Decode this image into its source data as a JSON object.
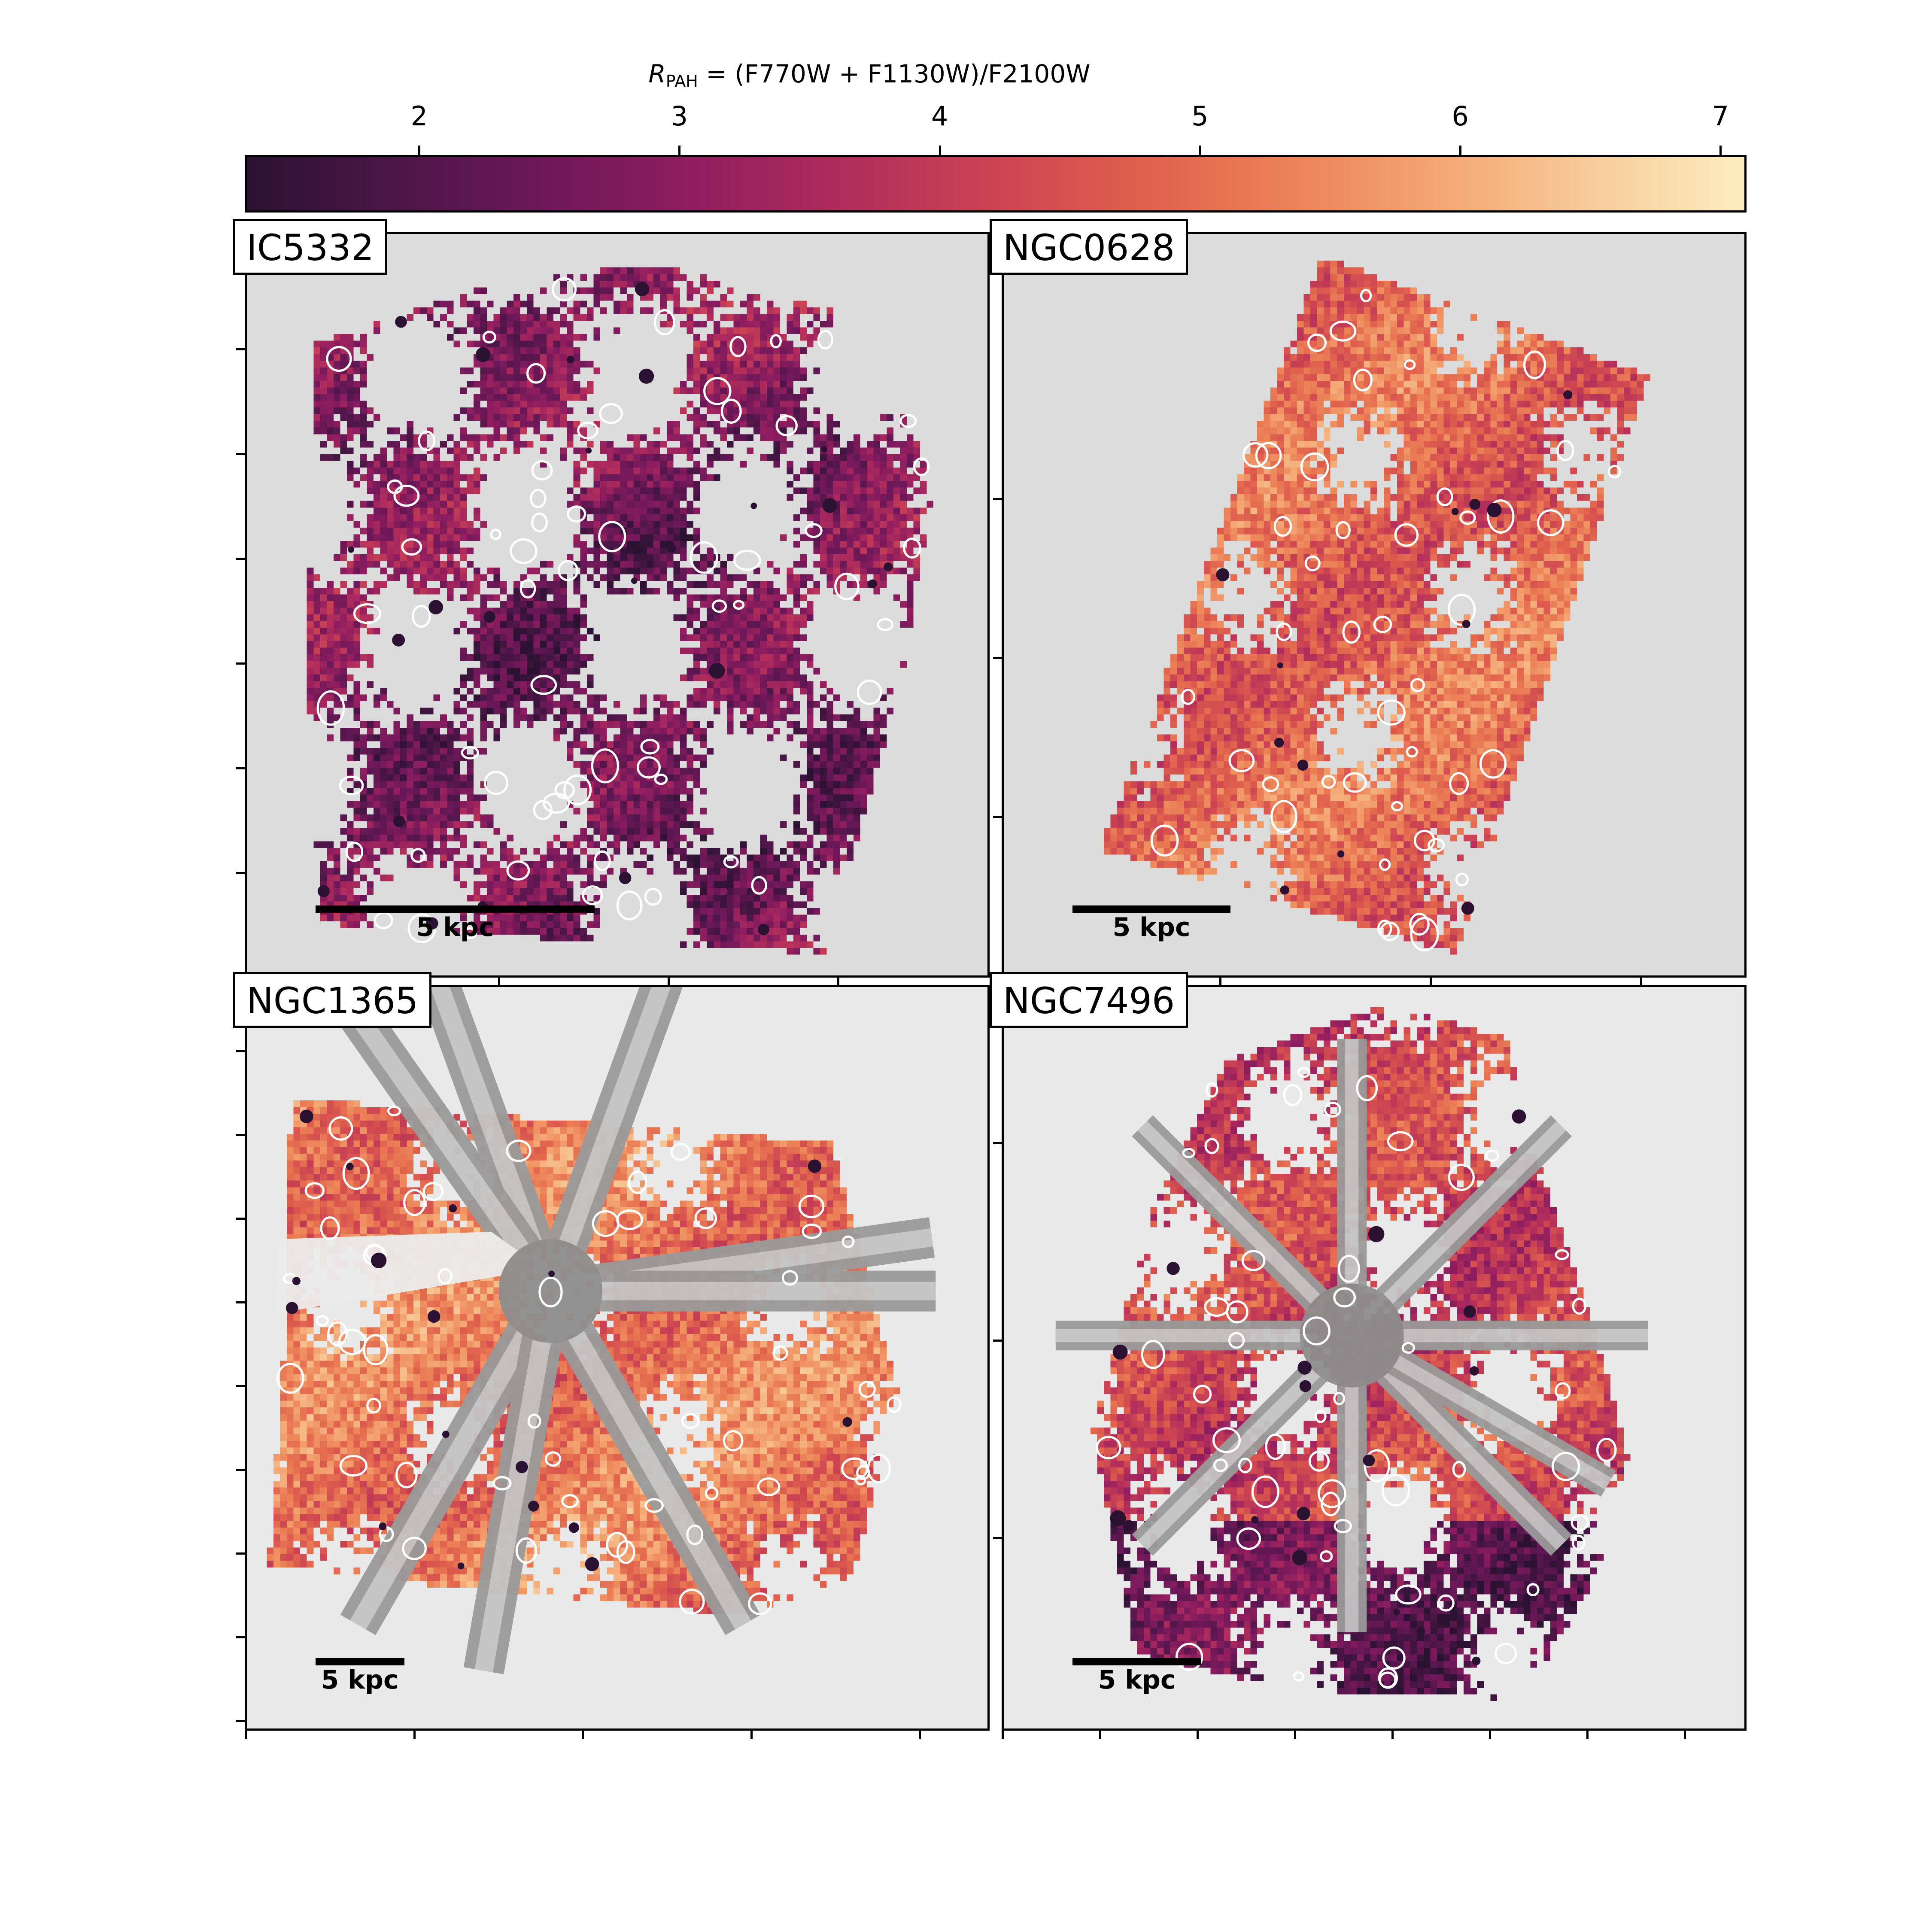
{
  "colorbar": {
    "title_main": "R",
    "title_sub": "PAH",
    "title_rest": " = (F770W + F1130W)/F2100W",
    "colormap": [
      "#2b1232",
      "#4c1647",
      "#6e1859",
      "#901e5f",
      "#b02d5c",
      "#cc4452",
      "#e0614d",
      "#ec8358",
      "#f4a875",
      "#f7cd9b",
      "#fcedc0"
    ],
    "range": [
      1.33,
      7.1
    ],
    "ticks": [
      "2",
      "3",
      "4",
      "5",
      "6",
      "7"
    ]
  },
  "panels": [
    {
      "name": "IC5332",
      "scalebar_label": "5 kpc",
      "background": "#dcdcdc",
      "footprint": [
        [
          0.09,
          0.15
        ],
        [
          0.32,
          0.07
        ],
        [
          0.55,
          0.04
        ],
        [
          0.85,
          0.12
        ],
        [
          0.93,
          0.35
        ],
        [
          0.88,
          0.62
        ],
        [
          0.78,
          0.97
        ],
        [
          0.4,
          0.95
        ],
        [
          0.1,
          0.93
        ],
        [
          0.08,
          0.6
        ]
      ],
      "ratio_mean": 3.1,
      "has_artifact": false
    },
    {
      "name": "NGC0628",
      "scalebar_label": "5 kpc",
      "background": "#dcdcdc",
      "footprint": [
        [
          0.43,
          0.03
        ],
        [
          0.87,
          0.19
        ],
        [
          0.61,
          0.97
        ],
        [
          0.13,
          0.83
        ]
      ],
      "ratio_mean": 4.9,
      "has_artifact": false
    },
    {
      "name": "NGC1365",
      "scalebar_label": "5 kpc",
      "background": "#e9e9e9",
      "footprint": [
        [
          0.06,
          0.15
        ],
        [
          0.55,
          0.19
        ],
        [
          0.79,
          0.21
        ],
        [
          0.88,
          0.55
        ],
        [
          0.82,
          0.79
        ],
        [
          0.69,
          0.85
        ],
        [
          0.28,
          0.81
        ],
        [
          0.03,
          0.78
        ],
        [
          0.05,
          0.5
        ]
      ],
      "ratio_mean": 5.2,
      "has_artifact": true
    },
    {
      "name": "NGC7496",
      "scalebar_label": "5 kpc",
      "background": "#e9e9e9",
      "footprint": [
        [
          0.3,
          0.1
        ],
        [
          0.52,
          0.02
        ],
        [
          0.68,
          0.07
        ],
        [
          0.74,
          0.29
        ],
        [
          0.8,
          0.47
        ],
        [
          0.86,
          0.7
        ],
        [
          0.7,
          0.96
        ],
        [
          0.4,
          0.95
        ],
        [
          0.18,
          0.9
        ],
        [
          0.12,
          0.6
        ],
        [
          0.2,
          0.3
        ]
      ],
      "ratio_mean": 4.2,
      "has_artifact": true
    }
  ]
}
